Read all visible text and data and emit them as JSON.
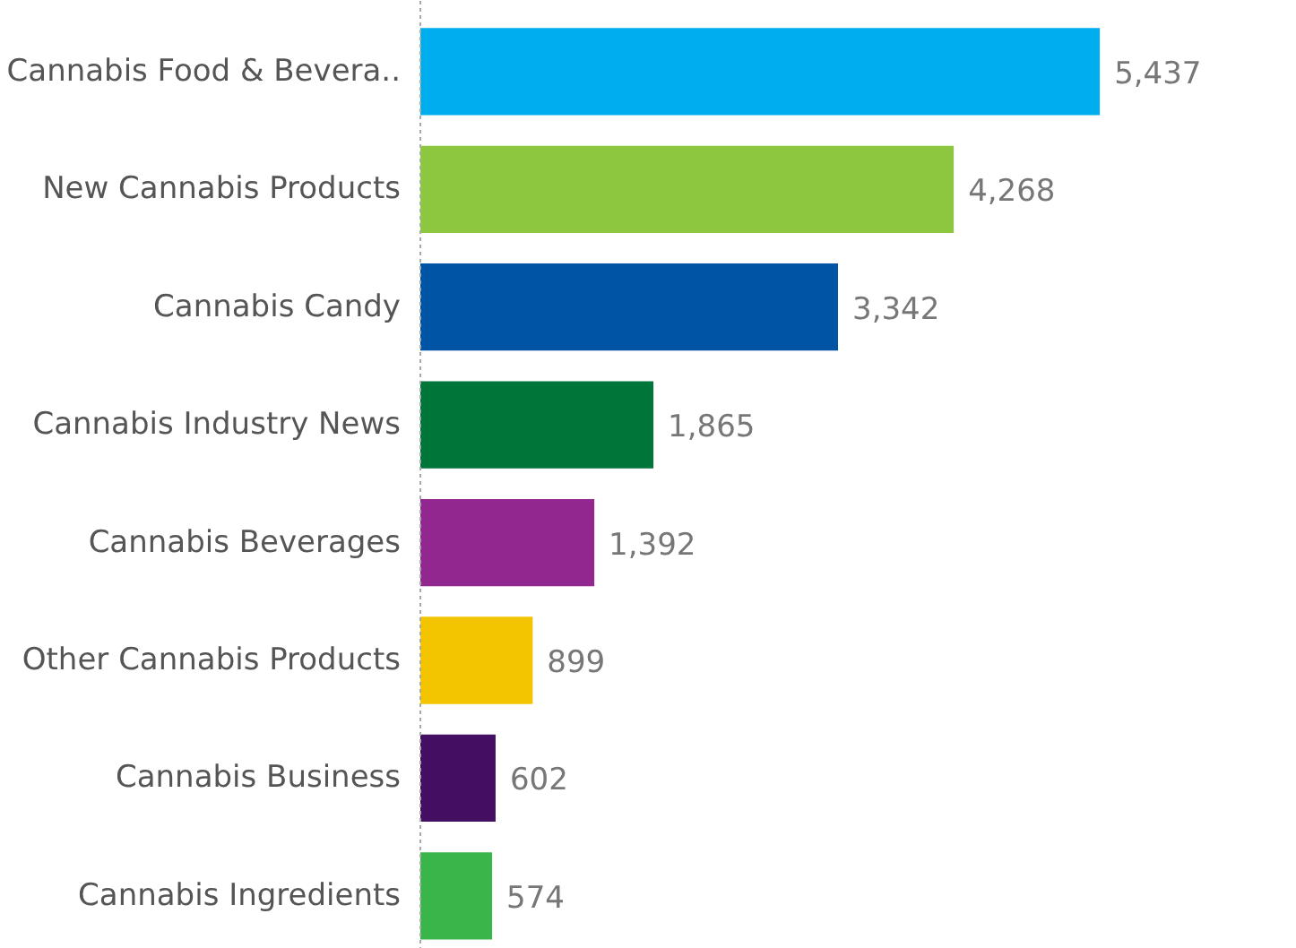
{
  "chart_data": {
    "type": "bar",
    "orientation": "horizontal",
    "grid": false,
    "value_labels": [
      "5,437",
      "4,268",
      "3,342",
      "1,865",
      "1,392",
      "899",
      "602",
      "574"
    ],
    "categories": [
      "Cannabis Food & Bevera..",
      "New Cannabis Products",
      "Cannabis Candy",
      "Cannabis Industry News",
      "Cannabis Beverages",
      "Other Cannabis Products",
      "Cannabis Business",
      "Cannabis Ingredients"
    ],
    "values": [
      5437,
      4268,
      3342,
      1865,
      1392,
      899,
      602,
      574
    ],
    "colors": [
      "#00aeef",
      "#8dc63f",
      "#0054a6",
      "#00753a",
      "#92278f",
      "#f2c500",
      "#440e62",
      "#39b54a"
    ]
  }
}
